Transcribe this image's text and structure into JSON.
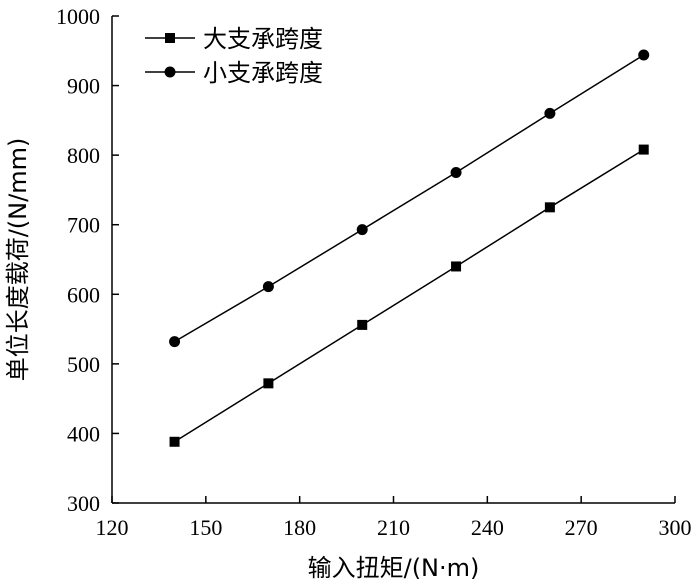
{
  "chart_data": {
    "type": "line",
    "xlabel": "输入扭矩/(N·m)",
    "ylabel": "单位长度载荷/(N/mm)",
    "xlim": [
      120,
      300
    ],
    "ylim": [
      300,
      1000
    ],
    "xticks": [
      120,
      150,
      180,
      210,
      240,
      270,
      300
    ],
    "yticks": [
      300,
      400,
      500,
      600,
      700,
      800,
      900,
      1000
    ],
    "grid": false,
    "legend_position": "top-left",
    "x": [
      140,
      170,
      200,
      230,
      260,
      290
    ],
    "series": [
      {
        "name": "大支承跨度",
        "marker": "square",
        "values": [
          388,
          472,
          556,
          640,
          725,
          808
        ]
      },
      {
        "name": "小支承跨度",
        "marker": "circle",
        "values": [
          532,
          611,
          693,
          775,
          860,
          944
        ]
      }
    ]
  }
}
